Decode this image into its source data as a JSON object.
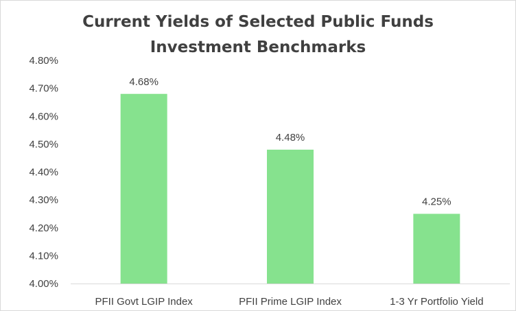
{
  "chart_data": {
    "type": "bar",
    "title_lines": [
      "Current Yields of Selected Public Funds",
      "Investment  Benchmarks"
    ],
    "categories": [
      "PFII Govt LGIP Index",
      "PFII Prime LGIP Index",
      "1-3 Yr  Portfolio Yield"
    ],
    "values": [
      4.68,
      4.48,
      4.25
    ],
    "data_labels": [
      "4.68%",
      "4.48%",
      "4.25%"
    ],
    "y_ticks": [
      "4.00%",
      "4.10%",
      "4.20%",
      "4.30%",
      "4.40%",
      "4.50%",
      "4.60%",
      "4.70%",
      "4.80%"
    ],
    "ylim": [
      4.0,
      4.8
    ],
    "y_step": 0.1,
    "xlabel": "",
    "ylabel": "",
    "grid": false,
    "legend": "none",
    "bar_color": "#86e28e",
    "text_color": "#404040",
    "axis_color": "#d9d9d9"
  }
}
